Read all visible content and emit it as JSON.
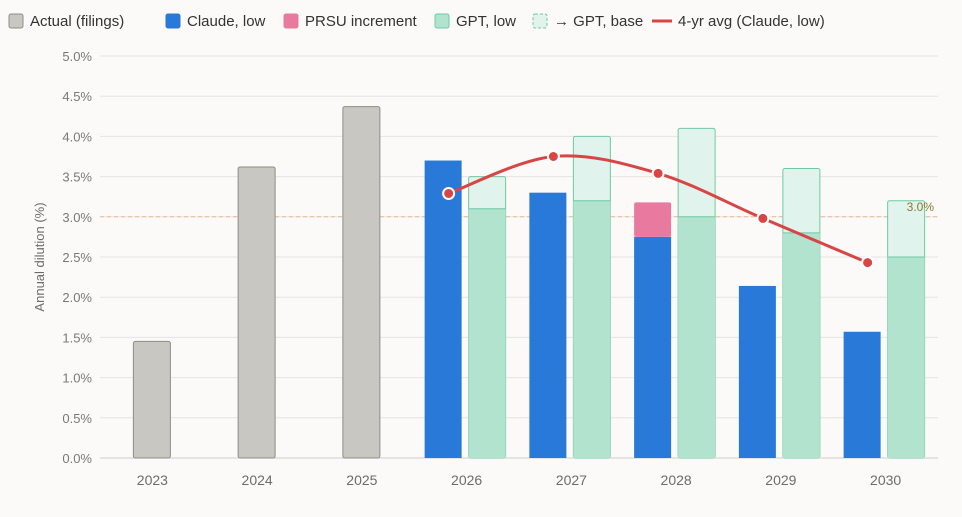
{
  "chart_data": {
    "type": "bar",
    "ylabel": "Annual dilution (%)",
    "ylim": [
      0,
      5.0
    ],
    "y_ticks": [
      "0.0%",
      "0.5%",
      "1.0%",
      "1.5%",
      "2.0%",
      "2.5%",
      "3.0%",
      "3.5%",
      "4.0%",
      "4.5%",
      "5.0%"
    ],
    "categories": [
      "2023",
      "2024",
      "2025",
      "2026",
      "2027",
      "2028",
      "2029",
      "2030"
    ],
    "legend": [
      {
        "name": "Actual (filings)",
        "kind": "actual"
      },
      {
        "name": "Claude, low",
        "kind": "claude"
      },
      {
        "name": "PRSU increment",
        "kind": "prsu"
      },
      {
        "name": "GPT, low",
        "kind": "gptlow"
      },
      {
        "name": "→ GPT, base",
        "kind": "gptbase"
      },
      {
        "name": "4-yr avg (Claude, low)",
        "kind": "avg"
      }
    ],
    "legend_position": "top-left",
    "grid": true,
    "series": {
      "actual": {
        "name": "Actual (filings)",
        "values": [
          1.45,
          3.62,
          4.37,
          null,
          null,
          null,
          null,
          null
        ]
      },
      "claude_low": {
        "name": "Claude, low",
        "values": [
          null,
          null,
          null,
          3.7,
          3.3,
          2.75,
          2.14,
          1.57
        ]
      },
      "prsu_increment": {
        "name": "PRSU increment",
        "values": [
          null,
          null,
          null,
          0,
          0,
          0.43,
          0,
          0
        ]
      },
      "gpt_low": {
        "name": "GPT, low",
        "values": [
          null,
          null,
          null,
          3.1,
          3.2,
          3.0,
          2.8,
          2.5
        ]
      },
      "gpt_base": {
        "name": "→ GPT, base",
        "values": [
          null,
          null,
          null,
          3.5,
          4.0,
          4.1,
          3.6,
          3.2
        ]
      },
      "avg_line": {
        "name": "4-yr avg (Claude, low)",
        "values": [
          null,
          null,
          null,
          3.29,
          3.75,
          3.54,
          2.98,
          2.43
        ]
      }
    },
    "reference_line": {
      "value": 3.0,
      "label": "3.0%"
    },
    "colors": {
      "actual": "#c8c7c2",
      "actual_stroke": "#8e8d88",
      "claude": "#2979d8",
      "prsu": "#e87aa0",
      "gptlow": "#b1e3cf",
      "gptbase": "#e0f3ec",
      "gpt_stroke": "#6fc9a5",
      "avg": "#d94545",
      "ref": "#e8b890",
      "ref_label": "#8a7a30"
    }
  }
}
